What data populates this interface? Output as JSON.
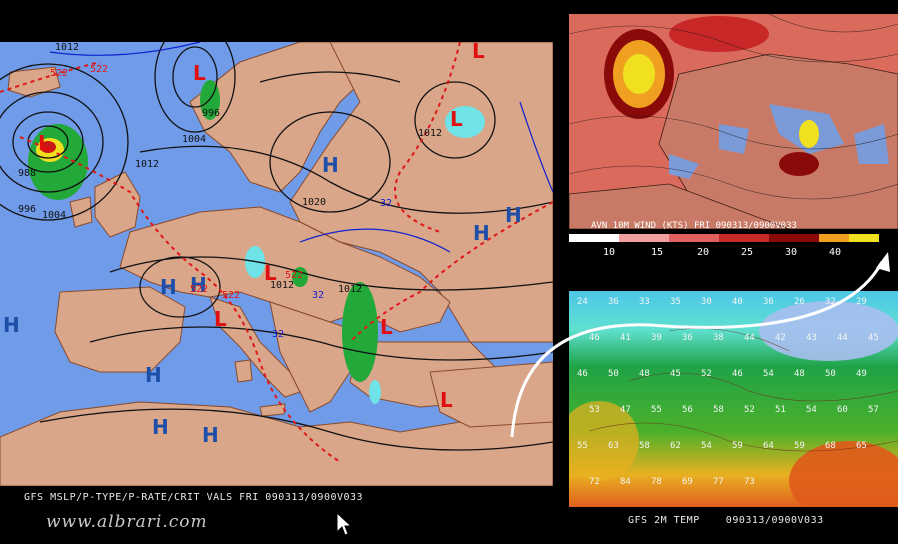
{
  "main_panel": {
    "caption": "GFS MSLP/P-TYPE/P-RATE/CRIT VALS FRI 090313/0900V033",
    "highs": [
      "H",
      "H",
      "H",
      "H",
      "H",
      "H",
      "H",
      "H",
      "H"
    ],
    "lows": [
      "L",
      "L",
      "L",
      "L",
      "L",
      "L",
      "L",
      "L"
    ],
    "isobar_labels": [
      "1012",
      "1004",
      "996",
      "988",
      "996",
      "1004",
      "1012",
      "1012",
      "1020",
      "1012",
      "1012"
    ],
    "thickness_labels": [
      "522",
      "522",
      "522",
      "522",
      "522",
      "32",
      "32",
      "32"
    ],
    "colors": {
      "sea": "#6f9be8",
      "land": "#d9a68a",
      "rain": "#22a93a",
      "snow": "#6fe3e8",
      "low_symbol": "#e01010",
      "high_symbol": "#1e4fa8",
      "isobar": "#111111",
      "thickness_line": "#e01818"
    }
  },
  "wind_panel": {
    "title": "AVN 10M WIND (KTS)  FRI 090313/0900V033",
    "scale_values": [
      "10",
      "15",
      "20",
      "25",
      "30",
      "40"
    ],
    "scale_colors": [
      "#f0a0a0",
      "#e06060",
      "#c82828",
      "#8a0a0a",
      "#f0a020",
      "#f0e020",
      "#ffffff"
    ]
  },
  "temp_panel": {
    "caption": "GFS 2M TEMP    090313/0900V033",
    "values": [
      "24",
      "36",
      "33",
      "35",
      "30",
      "40",
      "36",
      "26",
      "32",
      "29",
      "46",
      "41",
      "39",
      "36",
      "38",
      "44",
      "42",
      "43",
      "44",
      "45",
      "46",
      "50",
      "48",
      "45",
      "52",
      "46",
      "54",
      "48",
      "50",
      "49",
      "53",
      "47",
      "55",
      "56",
      "58",
      "52",
      "51",
      "54",
      "60",
      "57",
      "55",
      "63",
      "58",
      "62",
      "54",
      "59",
      "64",
      "59",
      "68",
      "65",
      "72",
      "84",
      "78",
      "69",
      "77",
      "73"
    ]
  },
  "watermark": "www.albrari.com",
  "icons": {
    "cursor": "mouse-pointer-icon",
    "arrow": "curved-arrow-icon"
  }
}
